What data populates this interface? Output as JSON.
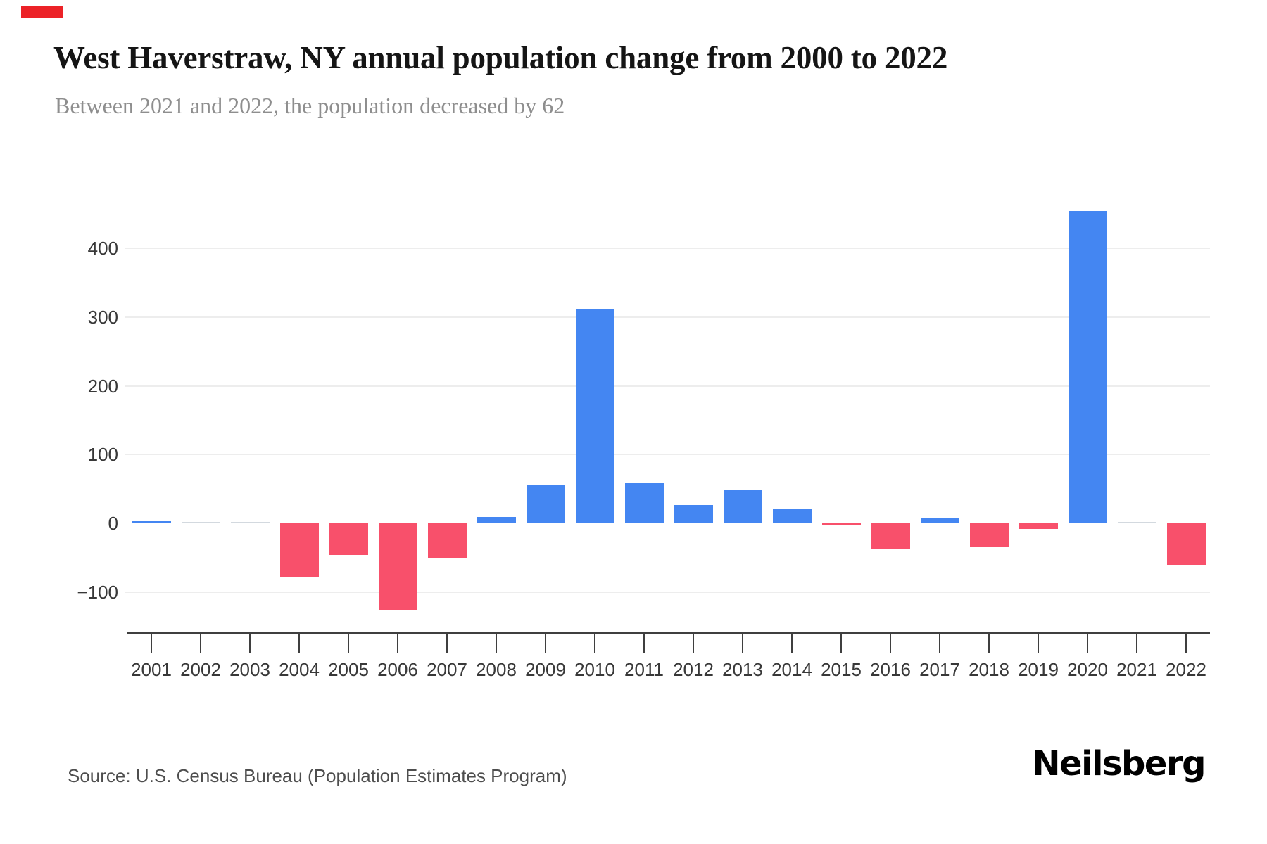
{
  "page": {
    "accent_color": "#ec2227",
    "background": "#ffffff"
  },
  "header": {
    "title": "West Haverstraw, NY annual population change from 2000 to 2022",
    "subtitle": "Between 2021 and 2022, the population decreased by 62"
  },
  "footer": {
    "source": "Source: U.S. Census Bureau (Population Estimates Program)",
    "logo": "Neilsberg"
  },
  "chart_data": {
    "type": "bar",
    "title": "West Haverstraw, NY annual population change from 2000 to 2022",
    "subtitle": "Between 2021 and 2022, the population decreased by 62",
    "categories": [
      "2001",
      "2002",
      "2003",
      "2004",
      "2005",
      "2006",
      "2007",
      "2008",
      "2009",
      "2010",
      "2011",
      "2012",
      "2013",
      "2014",
      "2015",
      "2016",
      "2017",
      "2018",
      "2019",
      "2020",
      "2021",
      "2022"
    ],
    "values": [
      2,
      0,
      0,
      -80,
      -47,
      -128,
      -51,
      8,
      54,
      311,
      57,
      26,
      48,
      19,
      -4,
      -39,
      6,
      -36,
      -9,
      453,
      0,
      -62
    ],
    "xlabel": "",
    "ylabel": "",
    "y_tick_labels": [
      400,
      300,
      200,
      100,
      0,
      -100
    ],
    "gridline_values": [
      400,
      300,
      200,
      100,
      -100
    ],
    "ylim": [
      -150,
      470
    ],
    "grid": "horizontal-only",
    "legend_position": "none",
    "colors": {
      "positive_bar": "#4486f2",
      "negative_bar": "#f8506b",
      "zero_bar": "#d3d9df",
      "gridline": "#ededed",
      "axis": "#3f3f3f"
    }
  }
}
